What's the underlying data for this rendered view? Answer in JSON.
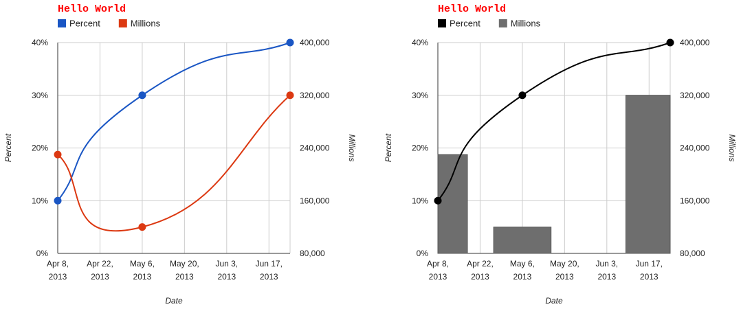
{
  "chart_data": [
    {
      "type": "line",
      "title": "Hello World",
      "x": [
        "2013-04-08",
        "2013-05-06",
        "2013-06-24"
      ],
      "series": [
        {
          "name": "Percent",
          "axis": "left",
          "style": "line",
          "values": [
            10,
            30,
            40
          ],
          "color": "#1a56c4"
        },
        {
          "name": "Millions",
          "axis": "right",
          "style": "line",
          "values": [
            230000,
            120000,
            320000
          ],
          "color": "#dc3912"
        }
      ],
      "xlabel": "Date",
      "ylabel_left": "Percent",
      "ylabel_right": "Millions",
      "ylim_left": [
        0,
        40
      ],
      "ylim_right": [
        80000,
        400000
      ],
      "xlim": [
        "2013-04-08",
        "2013-06-24"
      ],
      "x_ticks": [
        {
          "date": "2013-04-08",
          "line1": "Apr 8,",
          "line2": "2013"
        },
        {
          "date": "2013-04-22",
          "line1": "Apr 22,",
          "line2": "2013"
        },
        {
          "date": "2013-05-06",
          "line1": "May 6,",
          "line2": "2013"
        },
        {
          "date": "2013-05-20",
          "line1": "May 20,",
          "line2": "2013"
        },
        {
          "date": "2013-06-03",
          "line1": "Jun 3,",
          "line2": "2013"
        },
        {
          "date": "2013-06-17",
          "line1": "Jun 17,",
          "line2": "2013"
        }
      ],
      "y_ticks_left": [
        "0%",
        "10%",
        "20%",
        "30%",
        "40%"
      ],
      "y_ticks_right": [
        "80,000",
        "160,000",
        "240,000",
        "320,000",
        "400,000"
      ],
      "grid": true,
      "legend": "top-left",
      "title_color": "#ff0000"
    },
    {
      "type": "bar",
      "title": "Hello World",
      "x": [
        "2013-04-08",
        "2013-05-06",
        "2013-06-24"
      ],
      "series": [
        {
          "name": "Percent",
          "axis": "left",
          "style": "line",
          "values": [
            10,
            30,
            40
          ],
          "color": "#000000"
        },
        {
          "name": "Millions",
          "axis": "right",
          "style": "bars",
          "values": [
            230000,
            120000,
            320000
          ],
          "color": "#6e6e6e"
        }
      ],
      "xlabel": "Date",
      "ylabel_left": "Percent",
      "ylabel_right": "Millions",
      "ylim_left": [
        0,
        40
      ],
      "ylim_right": [
        80000,
        400000
      ],
      "xlim": [
        "2013-04-08",
        "2013-06-24"
      ],
      "x_ticks": [
        {
          "date": "2013-04-08",
          "line1": "Apr 8,",
          "line2": "2013"
        },
        {
          "date": "2013-04-22",
          "line1": "Apr 22,",
          "line2": "2013"
        },
        {
          "date": "2013-05-06",
          "line1": "May 6,",
          "line2": "2013"
        },
        {
          "date": "2013-05-20",
          "line1": "May 20,",
          "line2": "2013"
        },
        {
          "date": "2013-06-03",
          "line1": "Jun 3,",
          "line2": "2013"
        },
        {
          "date": "2013-06-17",
          "line1": "Jun 17,",
          "line2": "2013"
        }
      ],
      "y_ticks_left": [
        "0%",
        "10%",
        "20%",
        "30%",
        "40%"
      ],
      "y_ticks_right": [
        "80,000",
        "160,000",
        "240,000",
        "320,000",
        "400,000"
      ],
      "grid": true,
      "legend": "top-left",
      "title_color": "#ff0000"
    }
  ]
}
